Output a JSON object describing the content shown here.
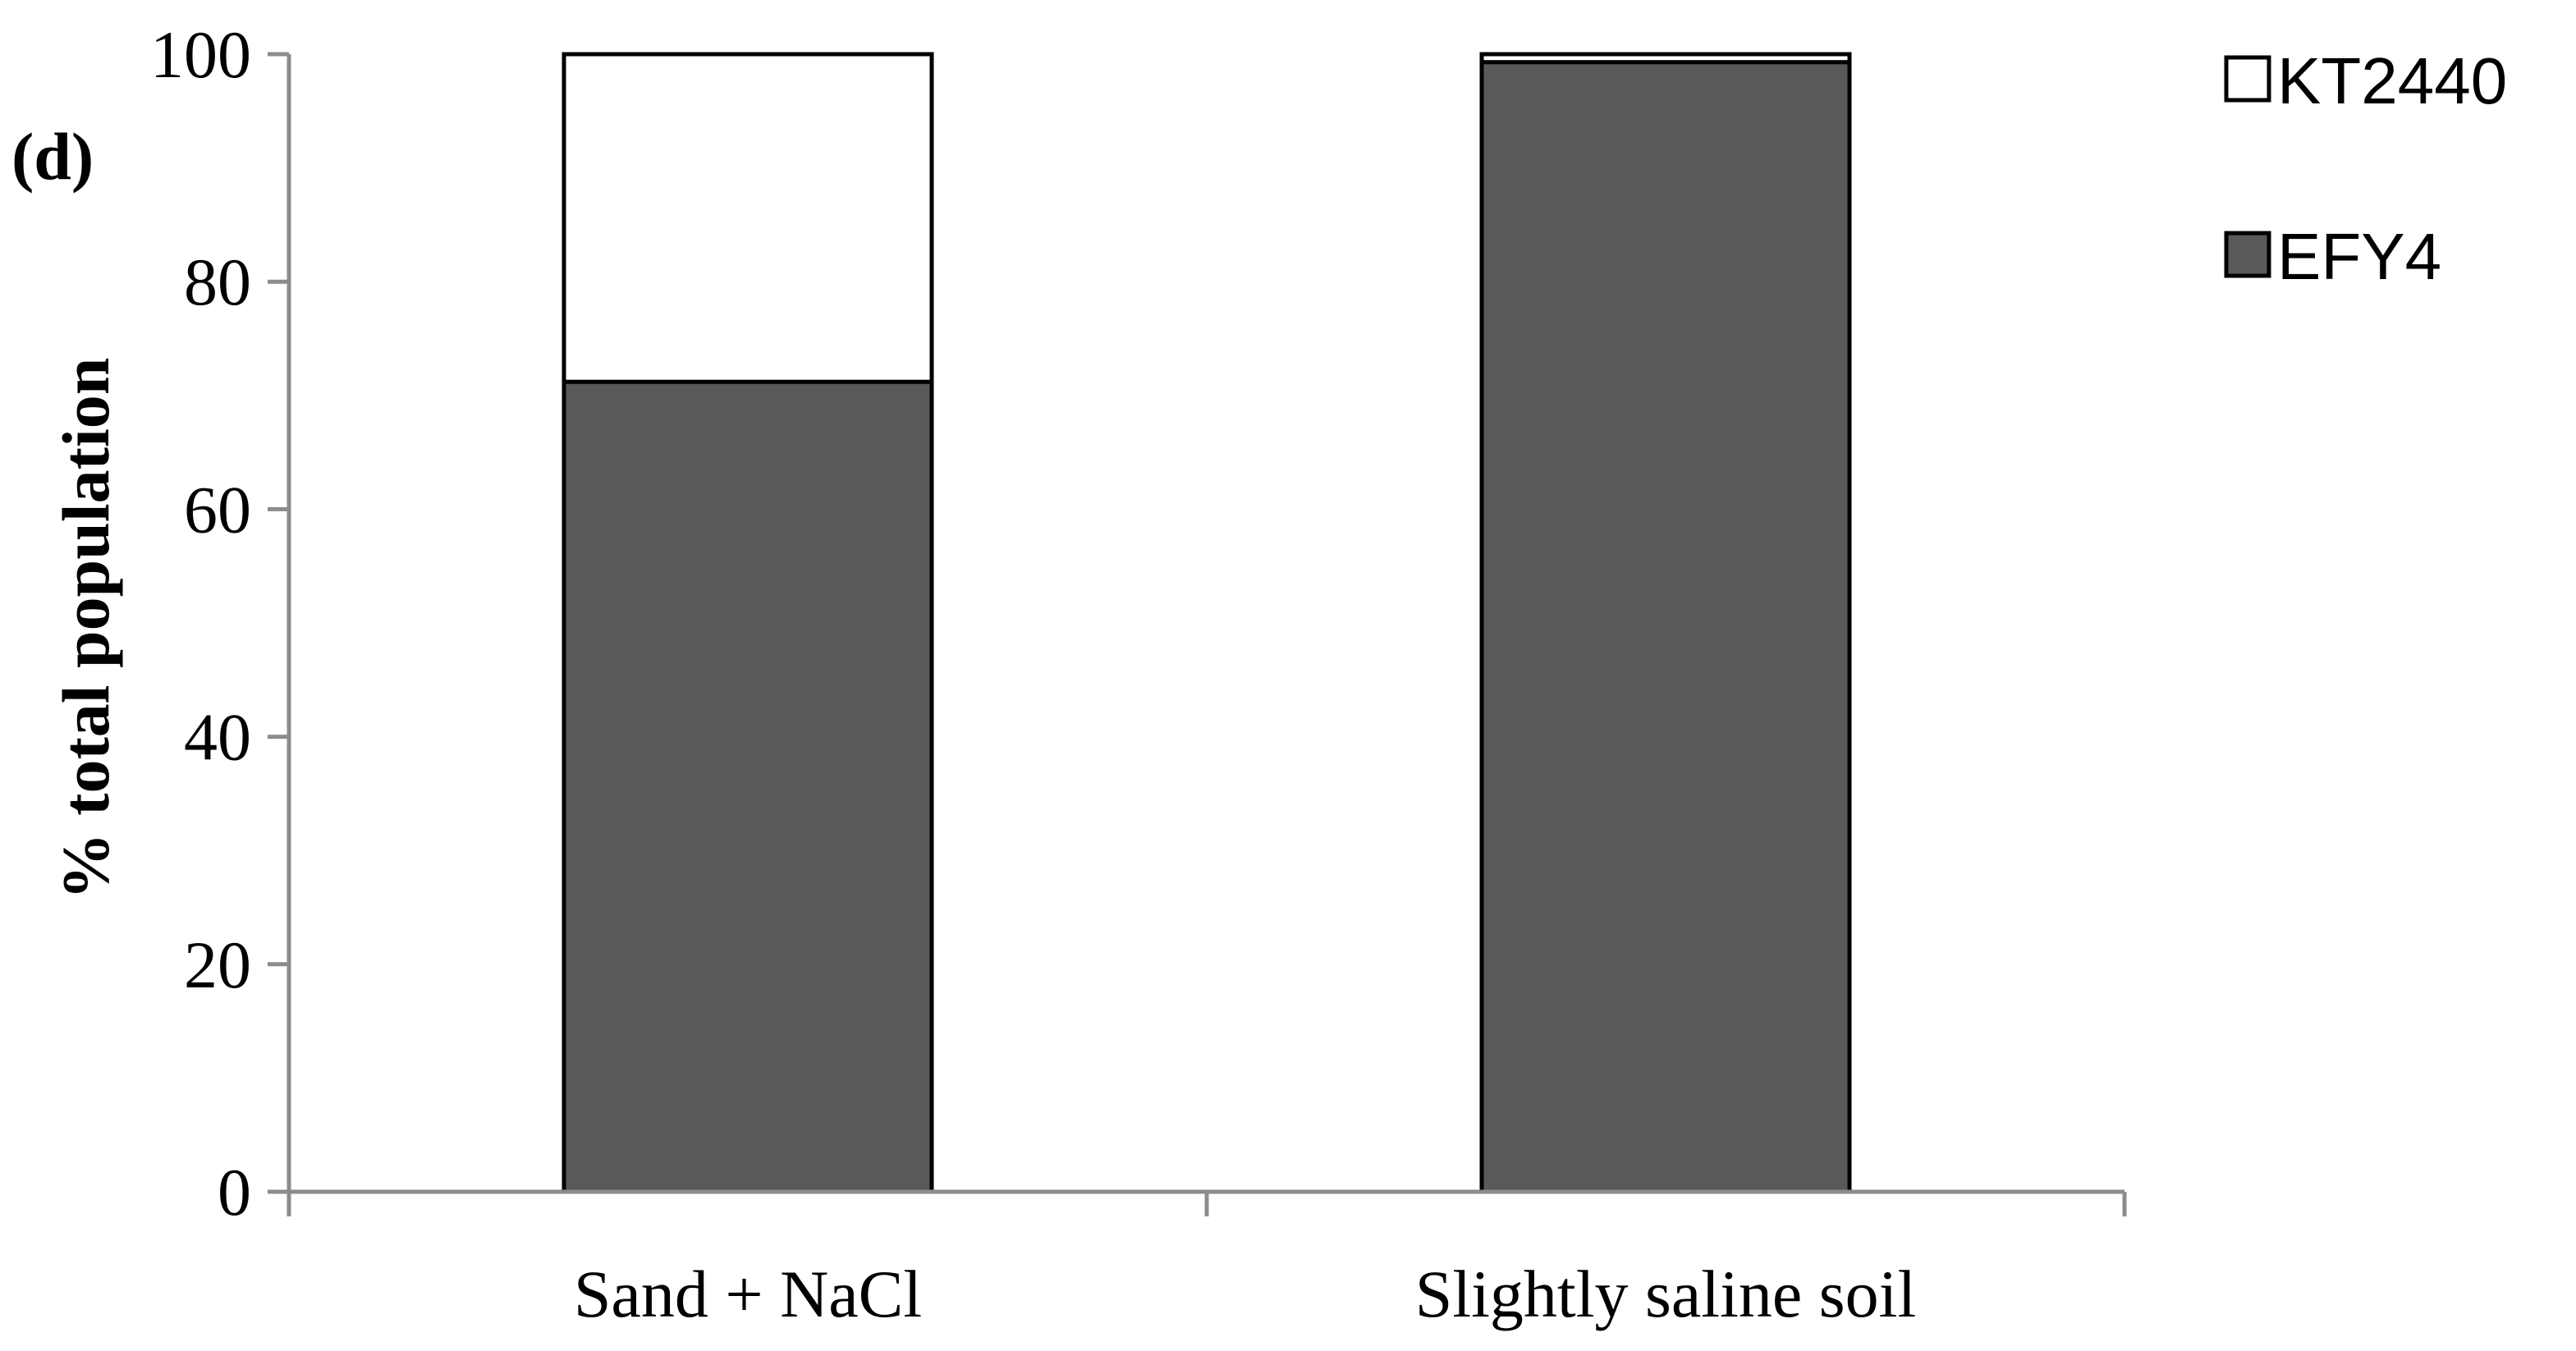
{
  "chart_data": {
    "type": "bar",
    "stacked": true,
    "panel_label": "(d)",
    "title": "",
    "xlabel": "",
    "ylabel": "% total population",
    "ylim": [
      0,
      100
    ],
    "yticks": [
      0,
      20,
      40,
      60,
      80,
      100
    ],
    "grid": false,
    "legend_position": "top-right",
    "categories": [
      "Sand + NaCl",
      "Slightly saline soil"
    ],
    "series": [
      {
        "name": "EFY4",
        "color": "#595959",
        "values": [
          71.2,
          99.3
        ]
      },
      {
        "name": "KT2440",
        "color": "#ffffff",
        "values": [
          28.8,
          0.7
        ]
      }
    ],
    "legend": [
      {
        "name": "KT2440",
        "color": "#ffffff"
      },
      {
        "name": "EFY4",
        "color": "#595959"
      }
    ]
  }
}
